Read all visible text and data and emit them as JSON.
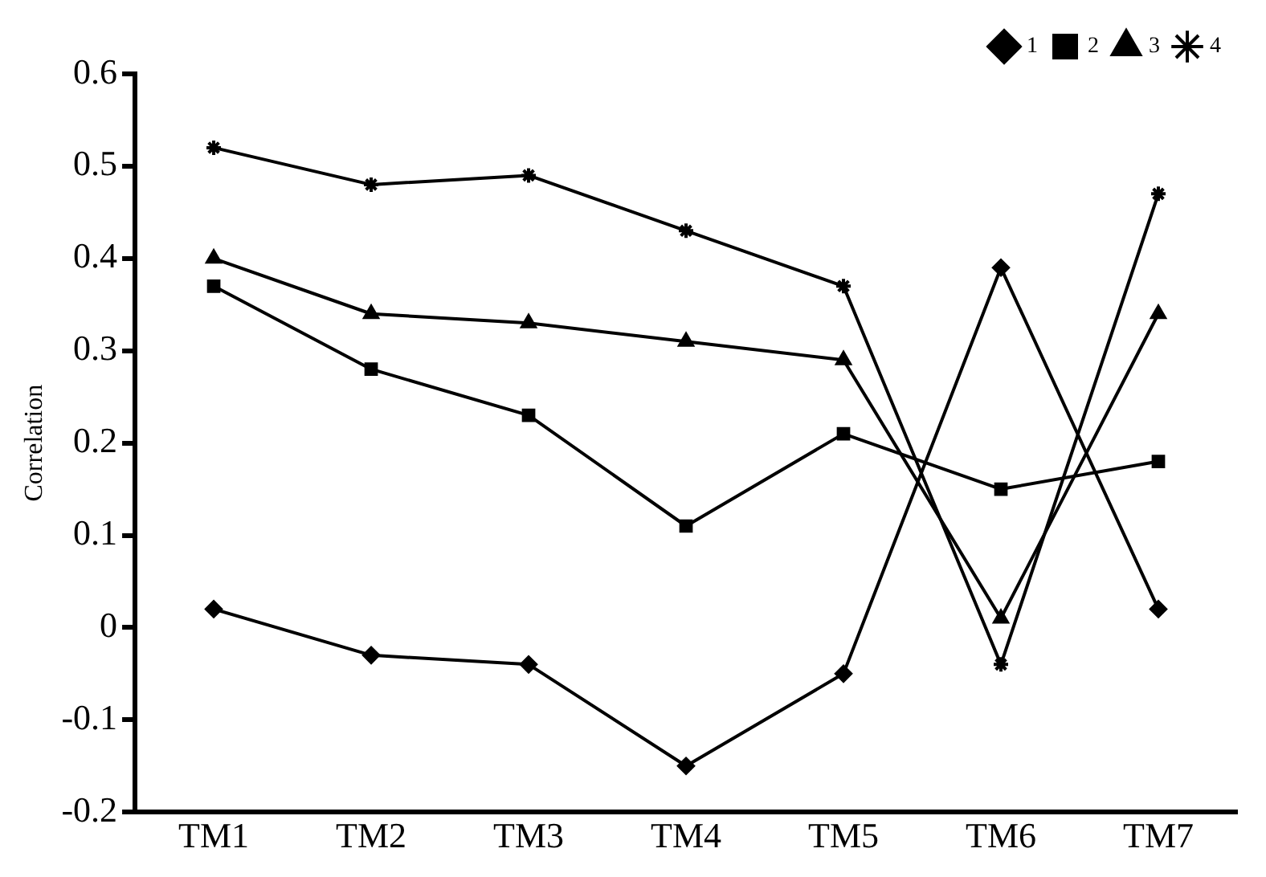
{
  "chart_data": {
    "type": "line",
    "ylabel": "Correlation",
    "categories": [
      "TM1",
      "TM2",
      "TM3",
      "TM4",
      "TM5",
      "TM6",
      "TM7"
    ],
    "series": [
      {
        "name": "1",
        "color": "#000000",
        "marker": "diamond",
        "values": [
          0.02,
          -0.03,
          -0.04,
          -0.15,
          -0.05,
          0.39,
          0.02
        ]
      },
      {
        "name": "2",
        "color": "#000000",
        "marker": "square",
        "values": [
          0.37,
          0.28,
          0.23,
          0.11,
          0.21,
          0.15,
          0.18
        ]
      },
      {
        "name": "3",
        "color": "#000000",
        "marker": "triangle",
        "values": [
          0.4,
          0.34,
          0.33,
          0.31,
          0.29,
          0.01,
          0.34
        ]
      },
      {
        "name": "4",
        "color": "#000000",
        "marker": "cross",
        "values": [
          0.52,
          0.48,
          0.49,
          0.43,
          0.37,
          -0.04,
          0.47
        ]
      }
    ],
    "ylim": [
      -0.2,
      0.6
    ],
    "yticks": [
      -0.2,
      -0.1,
      0,
      0.1,
      0.2,
      0.3,
      0.4,
      0.5,
      0.6
    ],
    "grid": false,
    "legend": "top right",
    "line_style": "solid"
  }
}
